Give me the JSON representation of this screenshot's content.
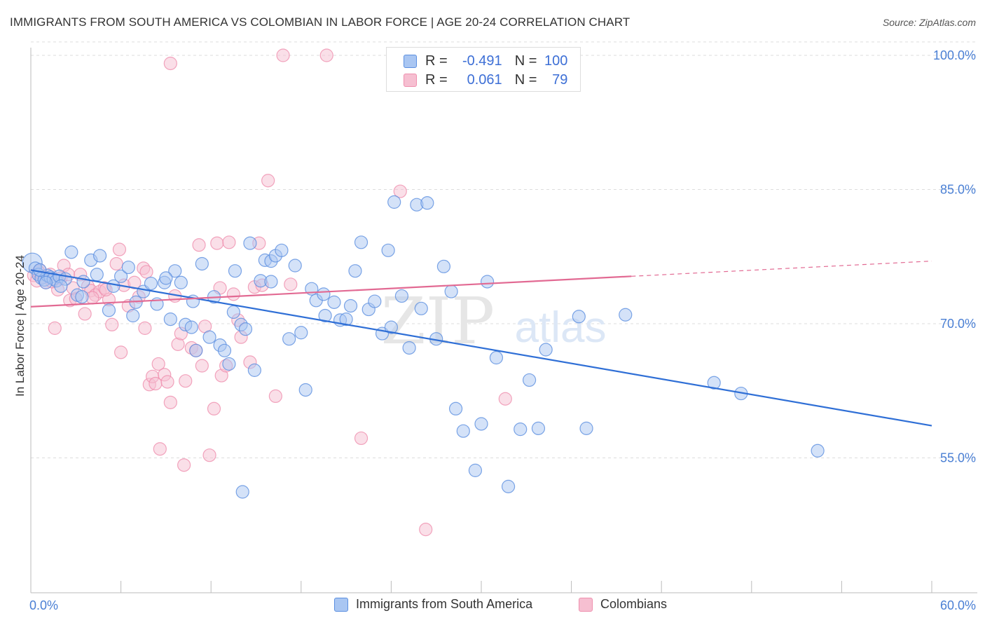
{
  "title": "IMMIGRANTS FROM SOUTH AMERICA VS COLOMBIAN IN LABOR FORCE | AGE 20-24 CORRELATION CHART",
  "source": "Source: ZipAtlas.com",
  "watermark": {
    "zip": "ZIP",
    "atlas": "atlas"
  },
  "colors": {
    "blue": "#5b8fe0",
    "blue_fill": "#a9c6f2",
    "blue_line": "#2f6fd6",
    "pink": "#ef8fae",
    "pink_fill": "#f6bfd1",
    "pink_line": "#e26a93",
    "grid": "#dddddd",
    "tick_text": "#4a7fd4"
  },
  "legend": {
    "rows": [
      {
        "r_label": "R =",
        "r_value": "-0.491",
        "n_label": "N =",
        "n_value": "100"
      },
      {
        "r_label": "R =",
        "r_value": "0.061",
        "n_label": "N =",
        "n_value": "79"
      }
    ]
  },
  "chart_data": {
    "type": "scatter",
    "title": "IMMIGRANTS FROM SOUTH AMERICA VS COLOMBIAN IN LABOR FORCE | AGE 20-24 CORRELATION CHART",
    "xlabel": "",
    "ylabel": "In Labor Force | Age 20-24",
    "xlim": [
      0,
      60
    ],
    "ylim": [
      40,
      101.5
    ],
    "x_tick_labels": [
      "0.0%",
      "60.0%"
    ],
    "y_ticks": [
      55,
      70,
      85,
      100
    ],
    "y_tick_labels": [
      "55.0%",
      "70.0%",
      "85.0%",
      "100.0%"
    ],
    "grid": true,
    "series": [
      {
        "name": "Immigrants from South America",
        "color": "#5b8fe0",
        "trend": {
          "x0": 0,
          "y0": 76.0,
          "x1": 60,
          "y1": 58.6,
          "dashed_from": null
        },
        "points": [
          [
            0.1,
            76.8
          ],
          [
            0.3,
            76.2
          ],
          [
            0.5,
            75.5
          ],
          [
            0.7,
            75.1
          ],
          [
            0.9,
            74.9
          ],
          [
            1.1,
            75.4
          ],
          [
            1.3,
            75.2
          ],
          [
            1.5,
            75.0
          ],
          [
            1.7,
            74.8
          ],
          [
            1.9,
            75.3
          ],
          [
            2.3,
            75.0
          ],
          [
            2.7,
            78.0
          ],
          [
            3.1,
            73.2
          ],
          [
            3.5,
            74.7
          ],
          [
            4.0,
            77.1
          ],
          [
            4.6,
            77.6
          ],
          [
            5.2,
            71.5
          ],
          [
            5.5,
            74.2
          ],
          [
            6.0,
            75.3
          ],
          [
            6.5,
            76.3
          ],
          [
            7.0,
            72.4
          ],
          [
            7.5,
            73.6
          ],
          [
            8.0,
            74.5
          ],
          [
            8.4,
            72.2
          ],
          [
            8.9,
            74.6
          ],
          [
            9.3,
            70.5
          ],
          [
            9.6,
            75.9
          ],
          [
            10.0,
            74.6
          ],
          [
            10.3,
            69.9
          ],
          [
            10.7,
            69.6
          ],
          [
            11.0,
            67.0
          ],
          [
            11.4,
            76.7
          ],
          [
            11.9,
            68.5
          ],
          [
            12.2,
            73.0
          ],
          [
            12.6,
            67.6
          ],
          [
            12.9,
            67.0
          ],
          [
            13.2,
            65.5
          ],
          [
            13.6,
            75.9
          ],
          [
            14.0,
            69.9
          ],
          [
            14.3,
            69.4
          ],
          [
            14.6,
            79.0
          ],
          [
            14.9,
            64.8
          ],
          [
            15.3,
            74.8
          ],
          [
            15.6,
            77.1
          ],
          [
            16.0,
            77.0
          ],
          [
            16.3,
            77.6
          ],
          [
            16.7,
            78.2
          ],
          [
            17.2,
            68.3
          ],
          [
            17.6,
            76.5
          ],
          [
            18.0,
            69.0
          ],
          [
            18.3,
            62.6
          ],
          [
            18.7,
            73.9
          ],
          [
            19.0,
            72.6
          ],
          [
            19.6,
            70.9
          ],
          [
            20.2,
            72.4
          ],
          [
            20.6,
            70.4
          ],
          [
            21.0,
            70.5
          ],
          [
            21.6,
            75.9
          ],
          [
            22.0,
            79.1
          ],
          [
            22.5,
            71.6
          ],
          [
            22.9,
            72.5
          ],
          [
            23.4,
            68.9
          ],
          [
            23.8,
            78.2
          ],
          [
            24.2,
            83.6
          ],
          [
            24.7,
            73.1
          ],
          [
            25.2,
            67.3
          ],
          [
            25.7,
            83.3
          ],
          [
            26.0,
            71.7
          ],
          [
            26.4,
            83.5
          ],
          [
            27.0,
            68.3
          ],
          [
            27.5,
            76.4
          ],
          [
            28.0,
            73.6
          ],
          [
            28.3,
            60.5
          ],
          [
            28.8,
            58.0
          ],
          [
            29.6,
            53.6
          ],
          [
            30.0,
            58.8
          ],
          [
            30.4,
            74.7
          ],
          [
            31.0,
            66.2
          ],
          [
            31.8,
            51.8
          ],
          [
            32.6,
            58.2
          ],
          [
            33.2,
            63.7
          ],
          [
            33.8,
            58.3
          ],
          [
            34.3,
            67.1
          ],
          [
            36.5,
            70.8
          ],
          [
            37.0,
            58.3
          ],
          [
            39.6,
            71.0
          ],
          [
            45.5,
            63.4
          ],
          [
            47.3,
            62.2
          ],
          [
            52.4,
            55.8
          ],
          [
            0.6,
            76.0
          ],
          [
            1.0,
            74.6
          ],
          [
            2.0,
            74.2
          ],
          [
            3.4,
            73.0
          ],
          [
            4.4,
            75.5
          ],
          [
            6.8,
            70.9
          ],
          [
            9.0,
            75.1
          ],
          [
            10.8,
            72.5
          ],
          [
            13.5,
            71.3
          ],
          [
            16.0,
            74.7
          ],
          [
            19.5,
            73.3
          ],
          [
            21.3,
            72.0
          ],
          [
            24.0,
            69.6
          ],
          [
            14.1,
            51.2
          ]
        ]
      },
      {
        "name": "Colombians",
        "color": "#ef8fae",
        "trend": {
          "x0": 0,
          "y0": 71.9,
          "x1": 60,
          "y1": 77.0,
          "dashed_from": 40
        },
        "points": [
          [
            0.2,
            75.4
          ],
          [
            0.4,
            74.8
          ],
          [
            0.6,
            76.0
          ],
          [
            0.8,
            75.2
          ],
          [
            1.0,
            74.6
          ],
          [
            1.3,
            75.5
          ],
          [
            1.6,
            69.5
          ],
          [
            1.8,
            73.8
          ],
          [
            2.0,
            75.1
          ],
          [
            2.2,
            76.5
          ],
          [
            2.5,
            75.5
          ],
          [
            2.6,
            72.6
          ],
          [
            3.0,
            72.8
          ],
          [
            3.3,
            75.5
          ],
          [
            3.6,
            71.1
          ],
          [
            3.8,
            74.2
          ],
          [
            4.0,
            73.7
          ],
          [
            4.3,
            73.2
          ],
          [
            4.6,
            73.6
          ],
          [
            4.9,
            74.0
          ],
          [
            5.2,
            72.7
          ],
          [
            5.4,
            69.9
          ],
          [
            5.7,
            76.7
          ],
          [
            5.9,
            78.3
          ],
          [
            6.0,
            66.8
          ],
          [
            6.2,
            74.3
          ],
          [
            6.5,
            72.0
          ],
          [
            6.9,
            74.6
          ],
          [
            7.2,
            73.0
          ],
          [
            7.5,
            76.2
          ],
          [
            7.6,
            69.5
          ],
          [
            7.7,
            75.8
          ],
          [
            7.9,
            63.2
          ],
          [
            8.1,
            64.1
          ],
          [
            8.3,
            63.3
          ],
          [
            8.5,
            65.5
          ],
          [
            8.6,
            56.0
          ],
          [
            8.9,
            64.3
          ],
          [
            9.1,
            63.5
          ],
          [
            9.3,
            61.2
          ],
          [
            9.3,
            99.1
          ],
          [
            9.6,
            73.1
          ],
          [
            9.8,
            67.7
          ],
          [
            10.0,
            68.9
          ],
          [
            10.2,
            54.2
          ],
          [
            10.3,
            63.6
          ],
          [
            10.7,
            67.3
          ],
          [
            11.0,
            67.0
          ],
          [
            11.2,
            78.8
          ],
          [
            11.4,
            65.3
          ],
          [
            11.6,
            69.7
          ],
          [
            11.9,
            55.3
          ],
          [
            12.2,
            60.5
          ],
          [
            12.4,
            79.0
          ],
          [
            12.6,
            74.0
          ],
          [
            12.7,
            64.2
          ],
          [
            13.0,
            65.3
          ],
          [
            13.2,
            79.1
          ],
          [
            13.5,
            73.3
          ],
          [
            13.8,
            70.4
          ],
          [
            14.0,
            68.5
          ],
          [
            14.6,
            65.7
          ],
          [
            14.9,
            74.1
          ],
          [
            15.2,
            79.0
          ],
          [
            15.4,
            74.3
          ],
          [
            15.8,
            86.0
          ],
          [
            16.3,
            61.9
          ],
          [
            16.8,
            100.0
          ],
          [
            17.3,
            74.4
          ],
          [
            19.7,
            100.0
          ],
          [
            22.0,
            57.2
          ],
          [
            24.6,
            84.8
          ],
          [
            26.3,
            47.0
          ],
          [
            31.6,
            61.6
          ],
          [
            0.5,
            75.8
          ],
          [
            1.4,
            74.7
          ],
          [
            2.8,
            74.0
          ],
          [
            4.1,
            72.9
          ],
          [
            5.0,
            73.8
          ]
        ]
      }
    ]
  },
  "bottom_legend": {
    "items": [
      "Immigrants from South America",
      "Colombians"
    ]
  }
}
